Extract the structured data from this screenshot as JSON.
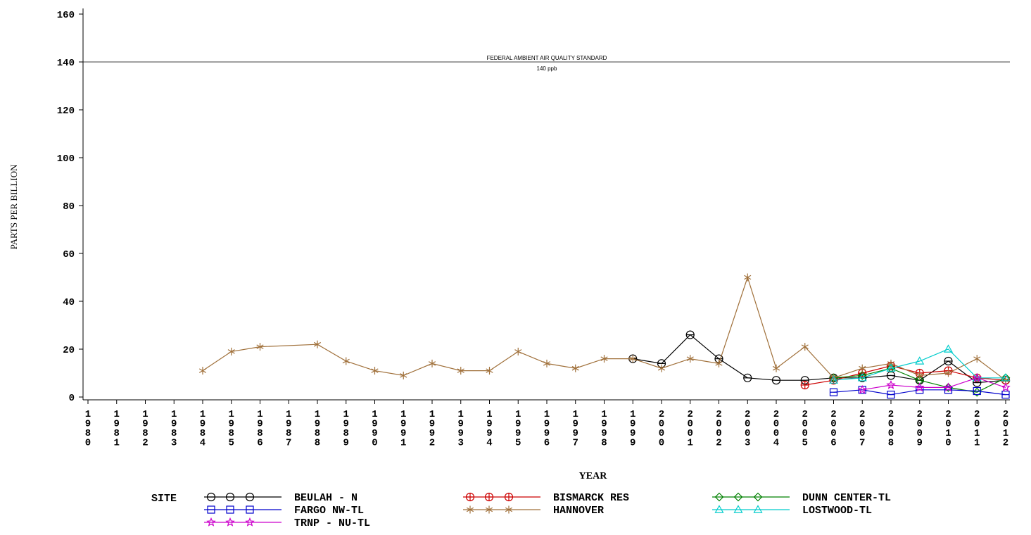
{
  "chart_data": {
    "type": "line",
    "xlabel": "YEAR",
    "ylabel": "PARTS PER BILLION",
    "ylim": [
      0,
      160
    ],
    "yticks": [
      "0",
      "20",
      "40",
      "60",
      "80",
      "100",
      "120",
      "140",
      "160"
    ],
    "x": [
      "1980",
      "1981",
      "1982",
      "1983",
      "1984",
      "1985",
      "1986",
      "1987",
      "1988",
      "1989",
      "1990",
      "1991",
      "1992",
      "1993",
      "1994",
      "1995",
      "1996",
      "1997",
      "1998",
      "1999",
      "2000",
      "2001",
      "2002",
      "2003",
      "2004",
      "2005",
      "2006",
      "2007",
      "2008",
      "2009",
      "2010",
      "2011",
      "2012"
    ],
    "grid": false,
    "legend_position": "bottom",
    "legend_title": "SITE",
    "reference_line": {
      "value": 140,
      "label": "FEDERAL AMBIENT AIR QUALITY STANDARD",
      "sublabel": "140 ppb"
    },
    "series": [
      {
        "name": "BEULAH - N",
        "color": "#000000",
        "marker": "circle-plus",
        "points": [
          [
            1999,
            16
          ],
          [
            2000,
            14
          ],
          [
            2001,
            26
          ],
          [
            2002,
            16
          ],
          [
            2003,
            8
          ],
          [
            2004,
            7
          ],
          [
            2005,
            7
          ],
          [
            2006,
            8
          ],
          [
            2007,
            8
          ],
          [
            2008,
            9
          ],
          [
            2009,
            7
          ],
          [
            2010,
            15
          ],
          [
            2011,
            6
          ],
          [
            2012,
            7
          ]
        ]
      },
      {
        "name": "BISMARCK RES",
        "color": "#cc0000",
        "marker": "circle-cross",
        "points": [
          [
            2005,
            5
          ],
          [
            2006,
            7
          ],
          [
            2007,
            10
          ],
          [
            2008,
            13
          ],
          [
            2009,
            10
          ],
          [
            2010,
            11
          ],
          [
            2011,
            8
          ],
          [
            2012,
            7
          ]
        ]
      },
      {
        "name": "DUNN CENTER-TL",
        "color": "#008000",
        "marker": "diamond",
        "points": [
          [
            2006,
            8
          ],
          [
            2007,
            9
          ],
          [
            2008,
            12
          ],
          [
            2009,
            7
          ],
          [
            2010,
            4
          ],
          [
            2011,
            2
          ],
          [
            2012,
            8
          ]
        ]
      },
      {
        "name": "FARGO NW-TL",
        "color": "#0000cc",
        "marker": "square-plus",
        "points": [
          [
            2006,
            2
          ],
          [
            2007,
            3
          ],
          [
            2008,
            1
          ],
          [
            2009,
            3
          ],
          [
            2010,
            3
          ],
          [
            2011,
            2.5
          ],
          [
            2012,
            1
          ]
        ]
      },
      {
        "name": "HANNOVER",
        "color": "#a0703a",
        "marker": "star",
        "points": [
          [
            1984,
            11
          ],
          [
            1985,
            19
          ],
          [
            1986,
            21
          ],
          [
            1988,
            22
          ],
          [
            1989,
            15
          ],
          [
            1990,
            11
          ],
          [
            1991,
            9
          ],
          [
            1992,
            14
          ],
          [
            1993,
            11
          ],
          [
            1994,
            11
          ],
          [
            1995,
            19
          ],
          [
            1996,
            14
          ],
          [
            1997,
            12
          ],
          [
            1998,
            16
          ],
          [
            1999,
            16
          ],
          [
            2000,
            12
          ],
          [
            2001,
            16
          ],
          [
            2002,
            14
          ],
          [
            2003,
            50
          ],
          [
            2004,
            12
          ],
          [
            2005,
            21
          ],
          [
            2006,
            8
          ],
          [
            2007,
            12
          ],
          [
            2008,
            14
          ],
          [
            2009,
            9
          ],
          [
            2010,
            10
          ],
          [
            2011,
            16
          ],
          [
            2012,
            7
          ]
        ]
      },
      {
        "name": "LOSTWOOD-TL",
        "color": "#00cccc",
        "marker": "triangle",
        "points": [
          [
            2006,
            7
          ],
          [
            2007,
            8
          ],
          [
            2008,
            12
          ],
          [
            2009,
            15
          ],
          [
            2010,
            20
          ],
          [
            2011,
            8
          ],
          [
            2012,
            8
          ]
        ]
      },
      {
        "name": "TRNP - NU-TL",
        "color": "#cc00cc",
        "marker": "asterisk",
        "points": [
          [
            2007,
            3
          ],
          [
            2008,
            5
          ],
          [
            2009,
            4
          ],
          [
            2010,
            4
          ],
          [
            2011,
            8
          ],
          [
            2012,
            4
          ]
        ]
      }
    ]
  }
}
